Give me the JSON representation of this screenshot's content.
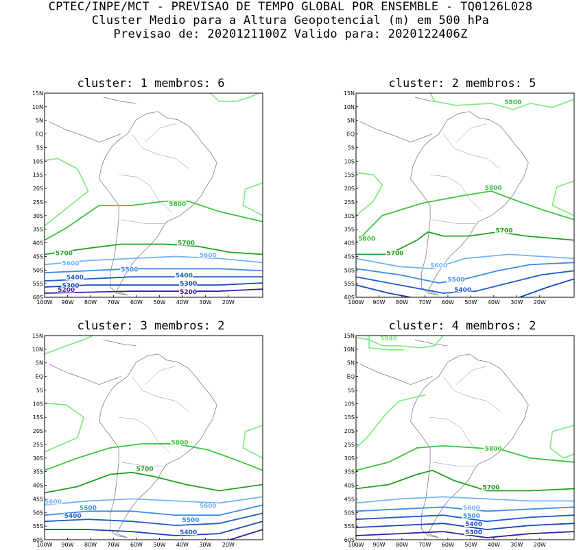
{
  "header": {
    "line1": "CPTEC/INPE/MCT - PREVISAO DE TEMPO GLOBAL POR ENSEMBLE - TQ0126L028",
    "line2": "Cluster Medio para a Altura Geopotencial (m) em 500 hPa",
    "line3": "Previsao de: 2020121100Z   Valido para: 2020122406Z"
  },
  "axes": {
    "lat_labels": [
      "15N",
      "10N",
      "5N",
      "EQ",
      "5S",
      "10S",
      "15S",
      "20S",
      "25S",
      "30S",
      "35S",
      "40S",
      "45S",
      "50S",
      "55S",
      "60S"
    ],
    "lon_labels": [
      "100W",
      "90W",
      "80W",
      "70W",
      "60W",
      "50W",
      "40W",
      "30W",
      "20W"
    ]
  },
  "colors": {
    "c5840": "#86ea86",
    "c5800": "#3cc43c",
    "c5700": "#1fa01f",
    "c5600": "#74b4f4",
    "c5500": "#3c8ce6",
    "c5400": "#1e5cc8",
    "c5300": "#1446b4",
    "c5200": "#3a18a0",
    "coast": "#8a8a8a"
  },
  "panels": [
    {
      "title": "cluster: 1   membros: 6",
      "labels": [
        "5800",
        "5700",
        "5700",
        "5600",
        "5600",
        "5500",
        "5400",
        "5400",
        "5300",
        "5300",
        "5200",
        "5200"
      ]
    },
    {
      "title": "cluster: 2   membros: 5",
      "labels": [
        "5800",
        "5800",
        "5700",
        "5700",
        "5800",
        "5600",
        "5500",
        "5400"
      ]
    },
    {
      "title": "cluster: 3   membros: 2",
      "labels": [
        "5800",
        "5700",
        "5600",
        "5600",
        "5500",
        "5500",
        "5400",
        "5400"
      ]
    },
    {
      "title": "cluster: 4   membros: 2",
      "labels": [
        "5840",
        "5800",
        "5700",
        "5600",
        "5500",
        "5400",
        "5300"
      ]
    }
  ]
}
